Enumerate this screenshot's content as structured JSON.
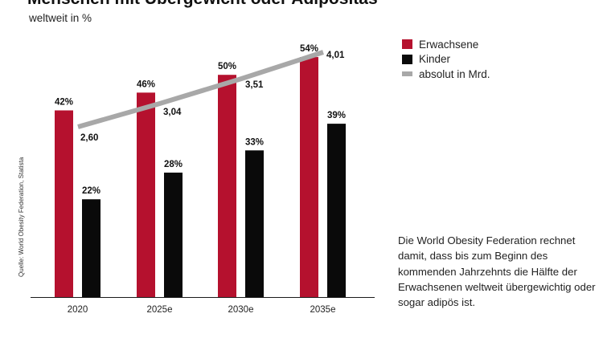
{
  "title": "Menschen mit Übergewicht oder Adipositas",
  "subtitle": "weltweit in %",
  "source": "Quelle: World Obesity Federation, Statista",
  "note": "Die World Obesity Federation rechnet damit, dass bis zum Beginn des kommenden Jahrzehnts die Hälfte der Erwachsenen weltweit übergewichtig oder sogar adipös ist.",
  "colors": {
    "adults": "#b5112e",
    "children": "#0a0a0a",
    "absolute": "#a8a8a8"
  },
  "chart_data": {
    "type": "bar",
    "categories": [
      "2020",
      "2025e",
      "2030e",
      "2035e"
    ],
    "ylim": [
      0,
      56
    ],
    "series": [
      {
        "name": "Erwachsene",
        "values": [
          42,
          46,
          50,
          54
        ],
        "labels": [
          "42%",
          "46%",
          "50%",
          "54%"
        ]
      },
      {
        "name": "Kinder",
        "values": [
          22,
          28,
          33,
          39
        ],
        "labels": [
          "22%",
          "28%",
          "33%",
          "39%"
        ]
      }
    ],
    "line_series": {
      "name": "absolut in Mrd.",
      "values": [
        2.6,
        3.04,
        3.51,
        4.01
      ],
      "labels": [
        "2,60",
        "3,04",
        "3,51",
        "4,01"
      ]
    },
    "legend": [
      "Erwachsene",
      "Kinder",
      "absolut in Mrd."
    ],
    "legend_position": "right"
  }
}
